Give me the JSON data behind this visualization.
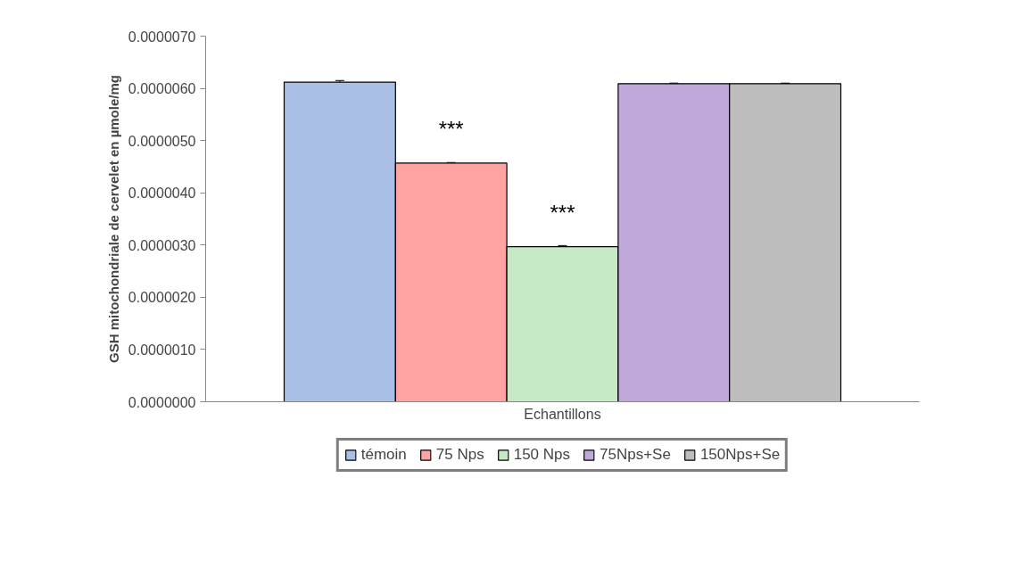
{
  "chart_data": {
    "type": "bar",
    "xlabel": "Echantillons",
    "ylabel": "GSH mitochondriale de cervelet en µmole/mg",
    "categories": [
      null
    ],
    "series": [
      {
        "name": "témoin",
        "color": "#a9bfe6",
        "values": [
          6.12e-06
        ],
        "errors": [
          3e-08
        ]
      },
      {
        "name": "75 Nps",
        "color": "#ffa3a3",
        "values": [
          4.57e-06
        ],
        "errors": [
          1e-08
        ]
      },
      {
        "name": "150 Nps",
        "color": "#c6eac6",
        "values": [
          2.97e-06
        ],
        "errors": [
          2e-08
        ]
      },
      {
        "name": "75Nps+Se",
        "color": "#bfa8da",
        "values": [
          6.09e-06
        ],
        "errors": [
          1e-08
        ]
      },
      {
        "name": "150Nps+Se",
        "color": "#bdbdbd",
        "values": [
          6.09e-06
        ],
        "errors": [
          1e-08
        ]
      }
    ],
    "ylim": [
      0,
      7e-06
    ],
    "yticks": [
      {
        "value": 0,
        "label": "0.0000000"
      },
      {
        "value": 1e-06,
        "label": "0.0000010"
      },
      {
        "value": 2e-06,
        "label": "0.0000020"
      },
      {
        "value": 3e-06,
        "label": "0.0000030"
      },
      {
        "value": 4e-06,
        "label": "0.0000040"
      },
      {
        "value": 5e-06,
        "label": "0.0000050"
      },
      {
        "value": 6e-06,
        "label": "0.0000060"
      },
      {
        "value": 7e-06,
        "label": "0.0000070"
      }
    ],
    "annotations": [
      "***",
      "***"
    ],
    "grid": false,
    "legend": "bottom"
  }
}
